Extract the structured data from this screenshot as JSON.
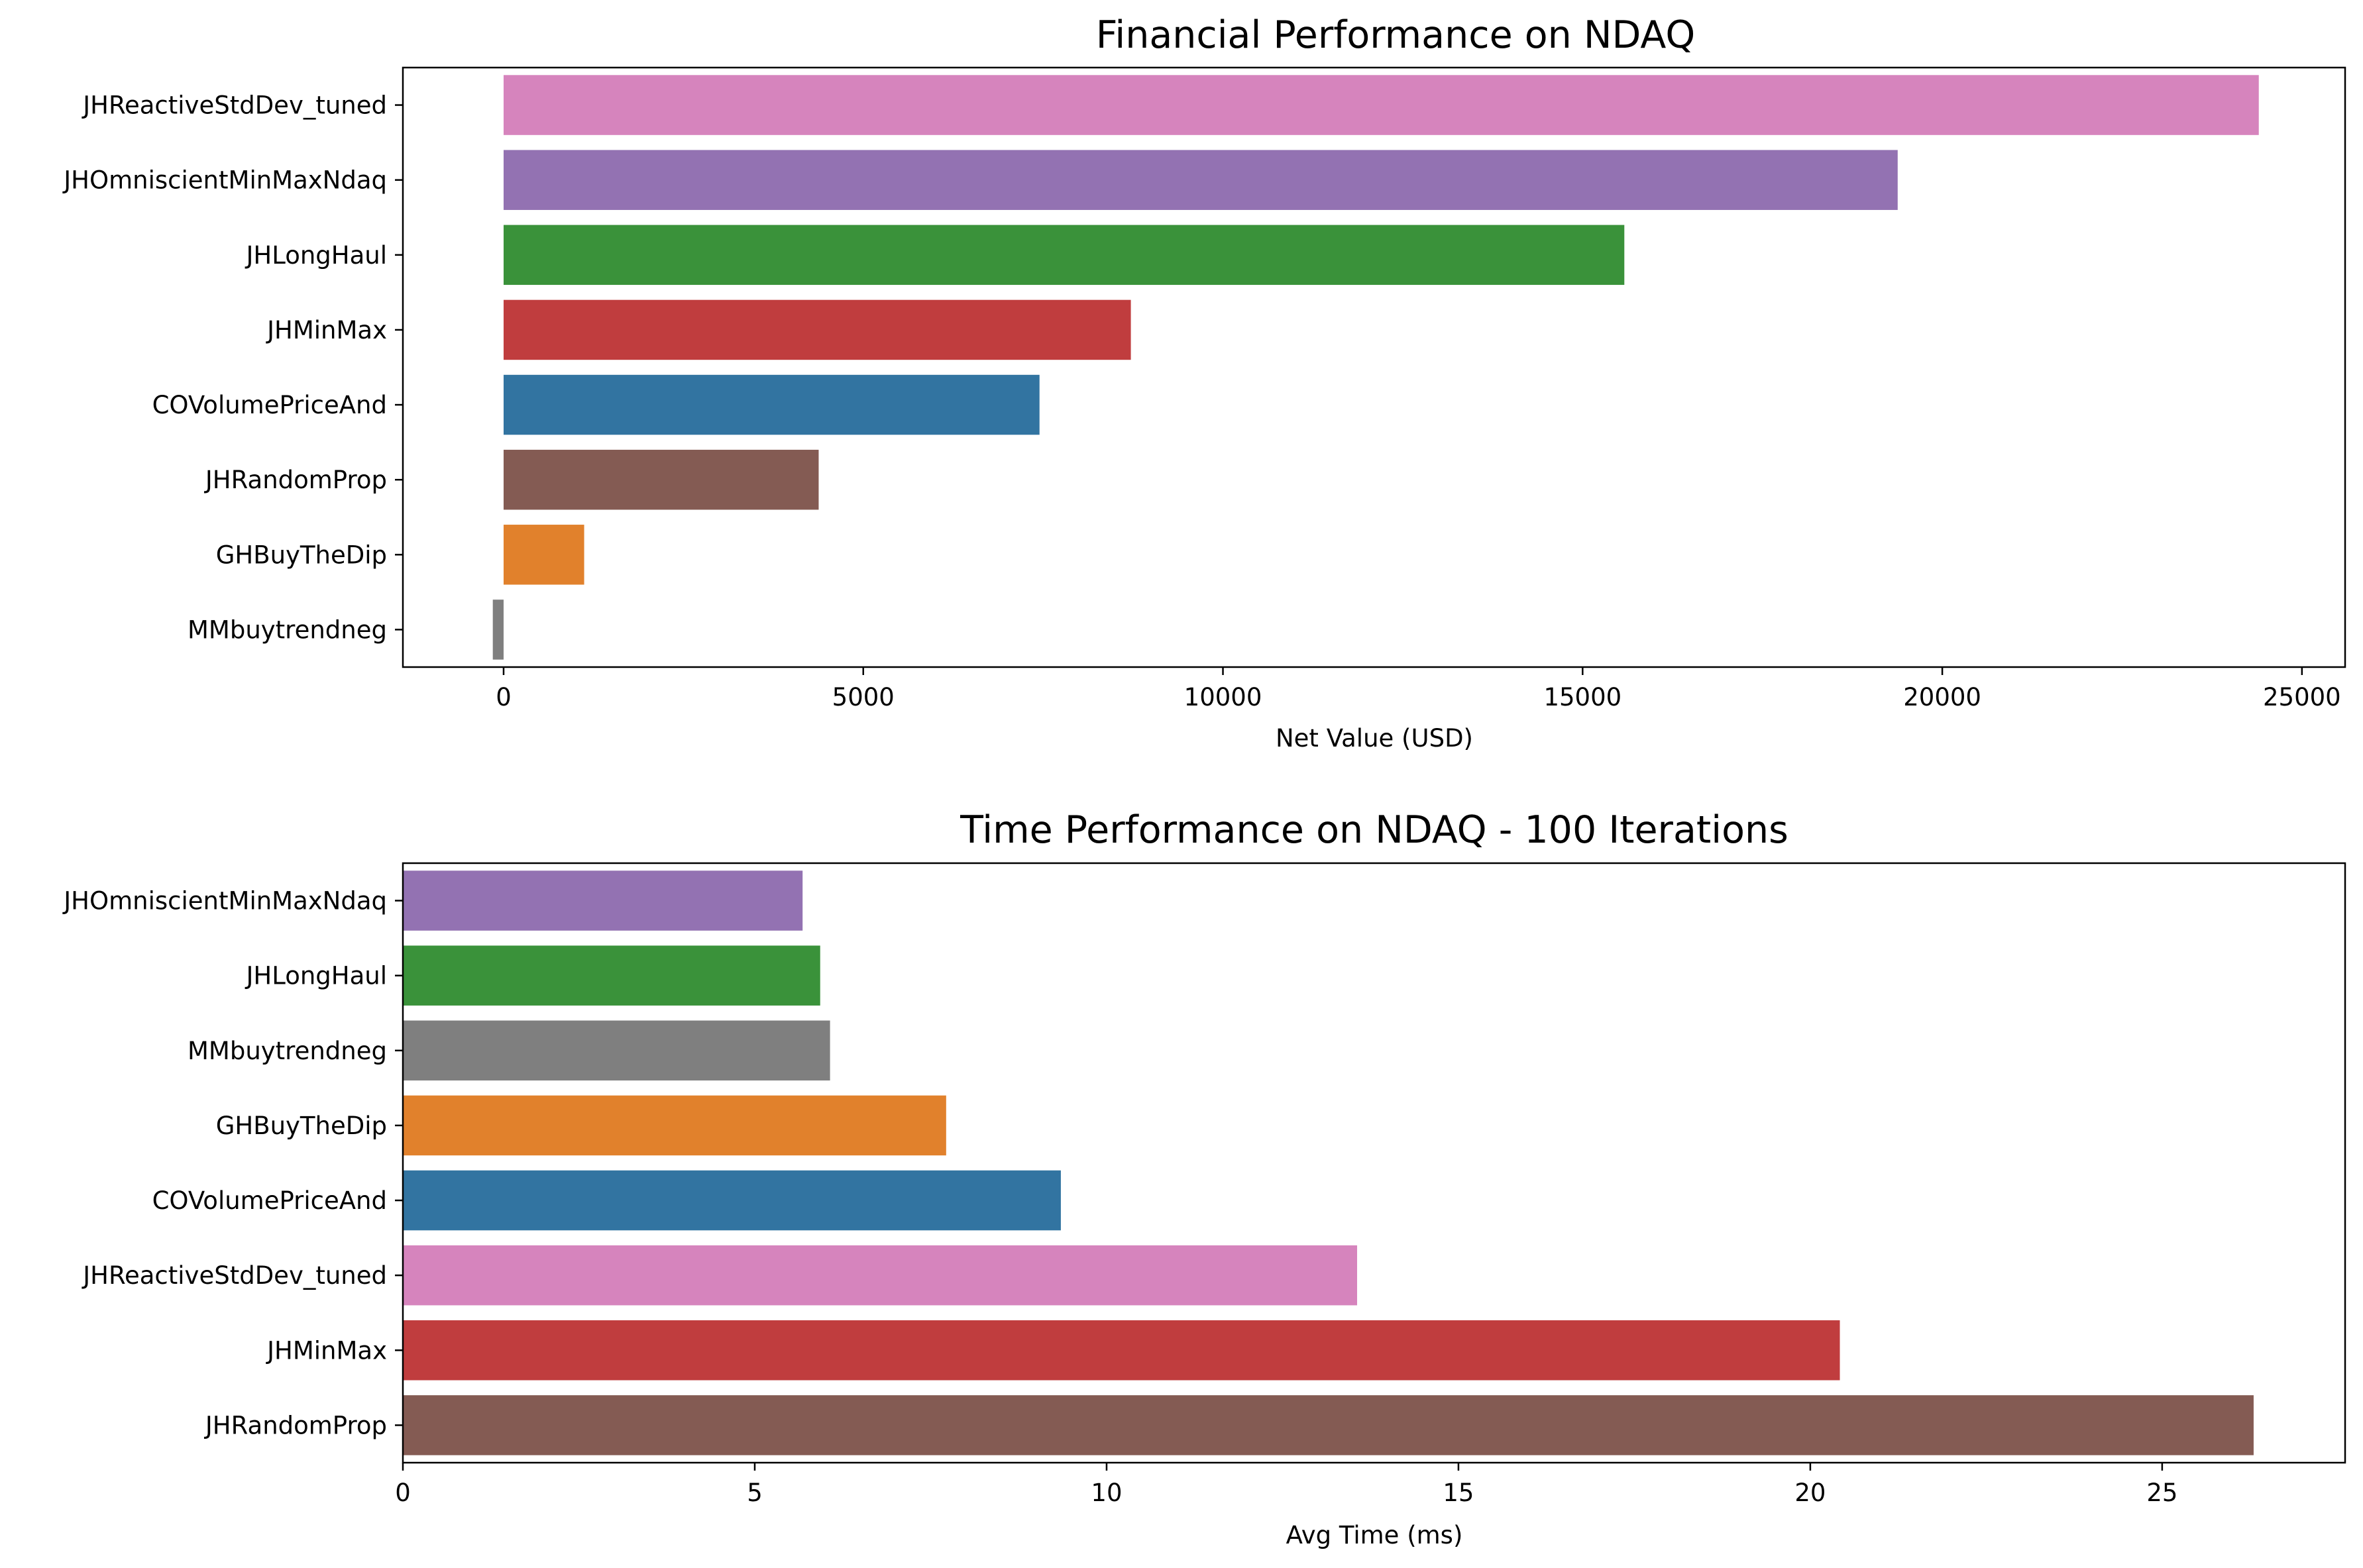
{
  "chart_data": [
    {
      "type": "bar",
      "orientation": "horizontal",
      "title": "Financial Performance on NDAQ",
      "xlabel": "Net Value (USD)",
      "ylabel": "",
      "xlim": [
        -1400,
        25600
      ],
      "xticks": [
        0,
        5000,
        10000,
        15000,
        20000,
        25000
      ],
      "xtick_labels": [
        "0",
        "5000",
        "10000",
        "15000",
        "20000",
        "25000"
      ],
      "grid": false,
      "categories": [
        "JHReactiveStdDev_tuned",
        "JHOmniscientMinMaxNdaq",
        "JHLongHaul",
        "JHMinMax",
        "COVolumePriceAnd",
        "JHRandomProp",
        "GHBuyTheDip",
        "MMbuytrendneg"
      ],
      "values": [
        24400,
        19380,
        15580,
        8720,
        7450,
        4380,
        1120,
        -150
      ],
      "colors": [
        "#d684bd",
        "#9372b2",
        "#3a923a",
        "#c03d3e",
        "#3274a1",
        "#845b53",
        "#e1812c",
        "#7f7f7f"
      ]
    },
    {
      "type": "bar",
      "orientation": "horizontal",
      "title": "Time Performance on NDAQ - 100 Iterations",
      "xlabel": "Avg Time (ms)",
      "ylabel": "",
      "xlim": [
        0,
        27.6
      ],
      "xticks": [
        0,
        5,
        10,
        15,
        20,
        25
      ],
      "xtick_labels": [
        "0",
        "5",
        "10",
        "15",
        "20",
        "25"
      ],
      "grid": false,
      "categories": [
        "JHOmniscientMinMaxNdaq",
        "JHLongHaul",
        "MMbuytrendneg",
        "GHBuyTheDip",
        "COVolumePriceAnd",
        "JHReactiveStdDev_tuned",
        "JHMinMax",
        "JHRandomProp"
      ],
      "values": [
        5.68,
        5.93,
        6.07,
        7.72,
        9.35,
        13.56,
        20.42,
        26.3
      ],
      "colors": [
        "#9372b2",
        "#3a923a",
        "#7f7f7f",
        "#e1812c",
        "#3274a1",
        "#d684bd",
        "#c03d3e",
        "#845b53"
      ]
    }
  ]
}
